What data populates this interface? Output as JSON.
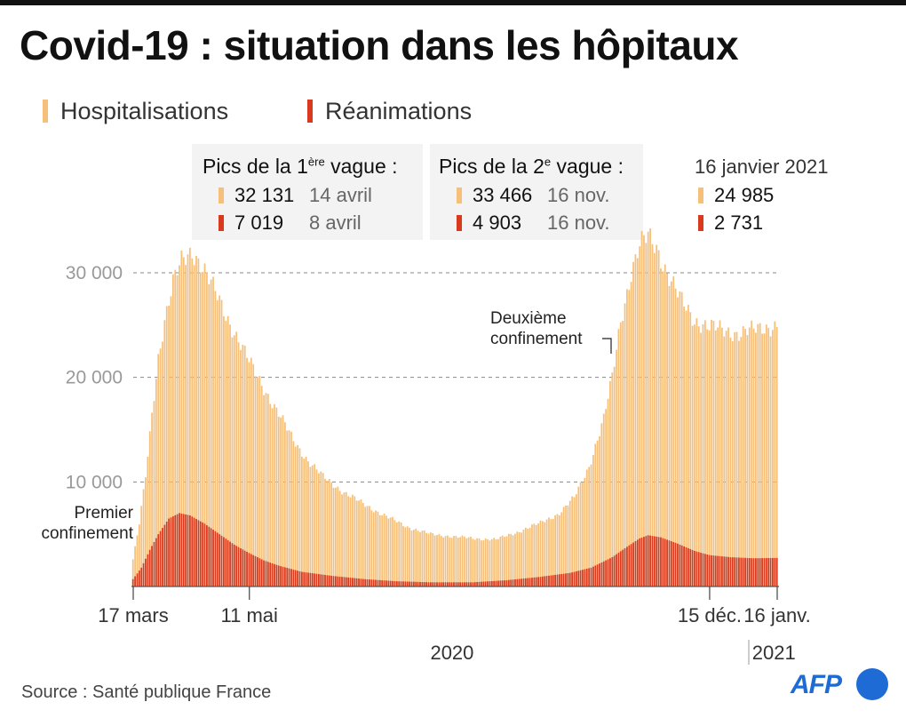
{
  "title": "Covid-19 : situation dans les hôpitaux",
  "source": "Source : Santé publique France",
  "logo": "AFP",
  "colors": {
    "hospitalisations": "#f7c07a",
    "reanimations": "#d93a1e",
    "grid": "#888888"
  },
  "legend": {
    "hosp": "Hospitalisations",
    "rea": "Réanimations"
  },
  "boxes": {
    "first": {
      "title_pre": "Pics de la 1",
      "title_sup": "ère",
      "title_post": " vague :",
      "hosp_value": "32 131",
      "hosp_date": "14 avril",
      "rea_value": "7 019",
      "rea_date": "8 avril"
    },
    "second": {
      "title_pre": "Pics de la 2",
      "title_sup": "e",
      "title_post": " vague :",
      "hosp_value": "33 466",
      "hosp_date": "16 nov.",
      "rea_value": "4 903",
      "rea_date": "16 nov."
    },
    "latest": {
      "title": "16 janvier 2021",
      "hosp_value": "24 985",
      "rea_value": "2 731"
    }
  },
  "annotations": {
    "first_lockdown": [
      "Premier",
      "confinement"
    ],
    "second_lockdown": [
      "Deuxième",
      "confinement"
    ]
  },
  "chart_data": {
    "type": "bar",
    "title": "Covid-19 : situation dans les hôpitaux",
    "x_start": "2020-03-17",
    "x_end": "2021-01-16",
    "ylim": [
      0,
      30000
    ],
    "yticks": [
      {
        "value": 10000,
        "label": "10 000"
      },
      {
        "value": 20000,
        "label": "20 000"
      },
      {
        "value": 30000,
        "label": "30 000"
      }
    ],
    "xticks": [
      {
        "date": "2020-03-17",
        "label": "17 mars"
      },
      {
        "date": "2020-05-11",
        "label": "11 mai"
      },
      {
        "date": "2020-12-15",
        "label": "15 déc."
      },
      {
        "date": "2021-01-16",
        "label": "16 janv."
      }
    ],
    "year_labels": [
      {
        "date": "2020-08-15",
        "label": "2020"
      },
      {
        "date": "2021-01-06",
        "label": "2021"
      }
    ],
    "grid": true,
    "legend_position": "top-left",
    "series": [
      {
        "name": "Hospitalisations",
        "color": "#f7c07a",
        "points": [
          [
            "2020-03-17",
            2600
          ],
          [
            "2020-03-20",
            6000
          ],
          [
            "2020-03-23",
            10500
          ],
          [
            "2020-03-26",
            16500
          ],
          [
            "2020-03-29",
            22000
          ],
          [
            "2020-04-01",
            25500
          ],
          [
            "2020-04-05",
            29000
          ],
          [
            "2020-04-09",
            31000
          ],
          [
            "2020-04-14",
            32131
          ],
          [
            "2020-04-18",
            31000
          ],
          [
            "2020-04-24",
            28500
          ],
          [
            "2020-04-30",
            26000
          ],
          [
            "2020-05-05",
            24000
          ],
          [
            "2020-05-11",
            21500
          ],
          [
            "2020-05-18",
            19000
          ],
          [
            "2020-05-25",
            16500
          ],
          [
            "2020-06-01",
            14000
          ],
          [
            "2020-06-08",
            12000
          ],
          [
            "2020-06-15",
            10500
          ],
          [
            "2020-06-25",
            9000
          ],
          [
            "2020-07-05",
            7800
          ],
          [
            "2020-07-15",
            6700
          ],
          [
            "2020-07-25",
            5700
          ],
          [
            "2020-08-05",
            5000
          ],
          [
            "2020-08-15",
            4800
          ],
          [
            "2020-08-25",
            4600
          ],
          [
            "2020-09-05",
            4500
          ],
          [
            "2020-09-15",
            5200
          ],
          [
            "2020-09-25",
            6000
          ],
          [
            "2020-10-05",
            7000
          ],
          [
            "2020-10-12",
            8500
          ],
          [
            "2020-10-19",
            11500
          ],
          [
            "2020-10-26",
            16000
          ],
          [
            "2020-10-30",
            20000
          ],
          [
            "2020-11-03",
            25500
          ],
          [
            "2020-11-08",
            30000
          ],
          [
            "2020-11-12",
            32500
          ],
          [
            "2020-11-16",
            33466
          ],
          [
            "2020-11-20",
            32500
          ],
          [
            "2020-11-25",
            30000
          ],
          [
            "2020-12-01",
            27500
          ],
          [
            "2020-12-08",
            25500
          ],
          [
            "2020-12-15",
            24800
          ],
          [
            "2020-12-22",
            24500
          ],
          [
            "2020-12-29",
            24200
          ],
          [
            "2021-01-05",
            24500
          ],
          [
            "2021-01-10",
            24800
          ],
          [
            "2021-01-16",
            24985
          ]
        ]
      },
      {
        "name": "Réanimations",
        "color": "#d93a1e",
        "points": [
          [
            "2020-03-17",
            700
          ],
          [
            "2020-03-21",
            1800
          ],
          [
            "2020-03-25",
            3500
          ],
          [
            "2020-03-29",
            5000
          ],
          [
            "2020-04-03",
            6500
          ],
          [
            "2020-04-08",
            7019
          ],
          [
            "2020-04-13",
            6800
          ],
          [
            "2020-04-20",
            6000
          ],
          [
            "2020-04-27",
            5000
          ],
          [
            "2020-05-04",
            4000
          ],
          [
            "2020-05-11",
            3200
          ],
          [
            "2020-05-18",
            2500
          ],
          [
            "2020-05-25",
            2000
          ],
          [
            "2020-06-05",
            1400
          ],
          [
            "2020-06-20",
            1000
          ],
          [
            "2020-07-05",
            700
          ],
          [
            "2020-07-20",
            500
          ],
          [
            "2020-08-05",
            400
          ],
          [
            "2020-08-25",
            400
          ],
          [
            "2020-09-10",
            600
          ],
          [
            "2020-09-25",
            900
          ],
          [
            "2020-10-10",
            1300
          ],
          [
            "2020-10-20",
            1800
          ],
          [
            "2020-10-30",
            2800
          ],
          [
            "2020-11-06",
            3800
          ],
          [
            "2020-11-12",
            4600
          ],
          [
            "2020-11-16",
            4903
          ],
          [
            "2020-11-22",
            4700
          ],
          [
            "2020-11-30",
            4100
          ],
          [
            "2020-12-08",
            3400
          ],
          [
            "2020-12-15",
            3000
          ],
          [
            "2020-12-25",
            2800
          ],
          [
            "2021-01-05",
            2700
          ],
          [
            "2021-01-16",
            2731
          ]
        ]
      }
    ]
  }
}
